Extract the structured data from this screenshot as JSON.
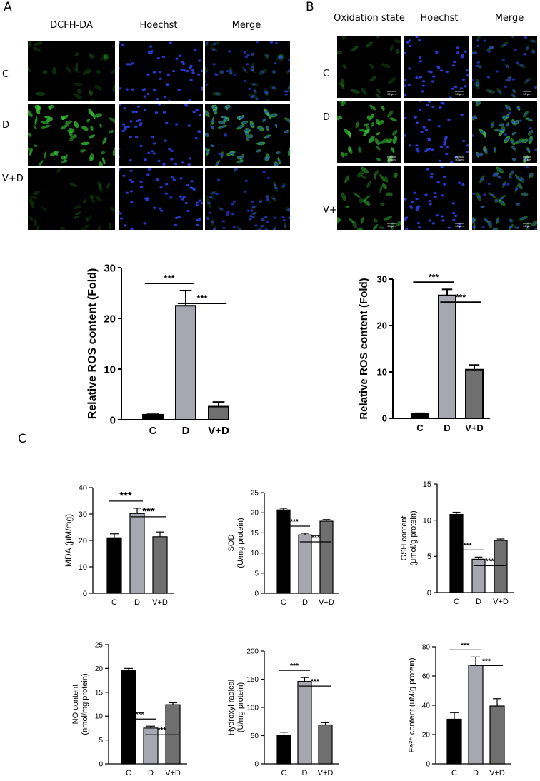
{
  "panels": {
    "A": {
      "letter": "A",
      "columns": [
        "DCFH-DA",
        "Hoechst",
        "Merge"
      ],
      "rows": [
        "C",
        "D",
        "V+D"
      ]
    },
    "B": {
      "letter": "B",
      "columns": [
        "Oxidation state",
        "Hoechst",
        "Merge"
      ],
      "rows": [
        "C",
        "D",
        "V+D"
      ],
      "scale_bar": "50 μm"
    },
    "C": {
      "letter": "C"
    }
  },
  "colors": {
    "bar_C": "#000000",
    "bar_D": "#a6a7b0",
    "bar_VD": "#6f6f6f",
    "green_signal": "#39d23a",
    "nuclei": "#2a3bd6",
    "scale_bar_text": "#ffffff"
  },
  "chart_data": [
    {
      "id": "ros-A",
      "type": "bar",
      "categories": [
        "C",
        "D",
        "V+D"
      ],
      "values": [
        1.0,
        22.5,
        2.6
      ],
      "errors": [
        0.1,
        3.0,
        0.9
      ],
      "ylabel": "Relative ROS content (Fold)",
      "ylim": [
        0,
        30
      ],
      "yticks": [
        "0",
        "10",
        "20",
        "30"
      ],
      "significance": [
        {
          "from": 0,
          "to": 1,
          "label": "***"
        },
        {
          "from": 1,
          "to": 2,
          "label": "***"
        }
      ]
    },
    {
      "id": "ros-B",
      "type": "bar",
      "categories": [
        "C",
        "D",
        "V+D"
      ],
      "values": [
        1.0,
        26.5,
        10.5
      ],
      "errors": [
        0.1,
        1.3,
        1.0
      ],
      "ylabel": "Relative ROS content (Fold)",
      "ylim": [
        0,
        30
      ],
      "yticks": [
        "0",
        "10",
        "20",
        "30"
      ],
      "significance": [
        {
          "from": 0,
          "to": 1,
          "label": "***"
        },
        {
          "from": 1,
          "to": 2,
          "label": "***"
        }
      ]
    },
    {
      "id": "mda",
      "type": "bar",
      "categories": [
        "C",
        "D",
        "V+D"
      ],
      "values": [
        21,
        30.2,
        21.4
      ],
      "errors": [
        1.5,
        2.0,
        1.8
      ],
      "ylabel": "MDA (μM/mg)",
      "ylim": [
        0,
        40
      ],
      "yticks": [
        "0",
        "10",
        "20",
        "30",
        "40"
      ],
      "significance": [
        {
          "from": 0,
          "to": 1,
          "label": "***"
        },
        {
          "from": 1,
          "to": 2,
          "label": "***"
        }
      ]
    },
    {
      "id": "sod",
      "type": "bar",
      "categories": [
        "C",
        "D",
        "V+D"
      ],
      "values": [
        20.7,
        14.5,
        17.9
      ],
      "errors": [
        0.4,
        0.4,
        0.4
      ],
      "ylabel": [
        "SOD",
        "(U/mg protein)"
      ],
      "ylim": [
        0,
        25
      ],
      "yticks": [
        "0",
        "5",
        "10",
        "15",
        "20",
        "25"
      ],
      "significance": [
        {
          "from": 0,
          "to": 1,
          "label": "***"
        },
        {
          "from": 1,
          "to": 2,
          "label": "***"
        }
      ]
    },
    {
      "id": "gsh",
      "type": "bar",
      "categories": [
        "C",
        "D",
        "V+D"
      ],
      "values": [
        10.8,
        4.6,
        7.2
      ],
      "errors": [
        0.3,
        0.3,
        0.2
      ],
      "ylabel": [
        "GSH content",
        "(μmol/g protein)"
      ],
      "ylim": [
        0,
        15
      ],
      "yticks": [
        "0",
        "5",
        "10",
        "15"
      ],
      "significance": [
        {
          "from": 0,
          "to": 1,
          "label": "***"
        },
        {
          "from": 1,
          "to": 2,
          "label": "***"
        }
      ]
    },
    {
      "id": "no",
      "type": "bar",
      "categories": [
        "C",
        "D",
        "V+D"
      ],
      "values": [
        19.6,
        7.5,
        12.4
      ],
      "errors": [
        0.4,
        0.4,
        0.4
      ],
      "ylabel": [
        "NO content",
        "(nmol/mg protein)"
      ],
      "ylim": [
        0,
        25
      ],
      "yticks": [
        "0",
        "5",
        "10",
        "15",
        "20",
        "25"
      ],
      "significance": [
        {
          "from": 0,
          "to": 1,
          "label": "***"
        },
        {
          "from": 1,
          "to": 2,
          "label": "***"
        }
      ]
    },
    {
      "id": "hydroxyl",
      "type": "bar",
      "categories": [
        "C",
        "D",
        "V+D"
      ],
      "values": [
        51,
        146,
        69
      ],
      "errors": [
        5,
        7,
        4
      ],
      "ylabel": [
        "Hydroxyl radical",
        "(U/mg protein)"
      ],
      "ylim": [
        0,
        200
      ],
      "yticks": [
        "0",
        "50",
        "100",
        "150",
        "200"
      ],
      "significance": [
        {
          "from": 0,
          "to": 1,
          "label": "***"
        },
        {
          "from": 1,
          "to": 2,
          "label": "***"
        }
      ]
    },
    {
      "id": "fe",
      "type": "bar",
      "categories": [
        "C",
        "D",
        "V+D"
      ],
      "values": [
        30.5,
        67.5,
        39.5
      ],
      "errors": [
        4.5,
        5.5,
        5
      ],
      "ylabel": [
        "Fe²⁺ content (uM/g protein)"
      ],
      "ylim": [
        0,
        80
      ],
      "yticks": [
        "0",
        "20",
        "40",
        "60",
        "80"
      ],
      "significance": [
        {
          "from": 0,
          "to": 1,
          "label": "***"
        },
        {
          "from": 1,
          "to": 2,
          "label": "***"
        }
      ]
    }
  ]
}
